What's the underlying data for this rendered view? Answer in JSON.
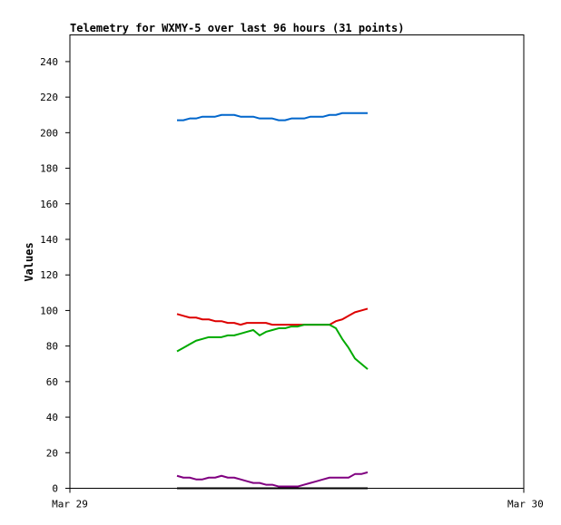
{
  "chart_data": {
    "type": "line",
    "title": "Telemetry for WXMY-5 over last 96 hours (31 points)",
    "xlabel": "",
    "ylabel": "Values",
    "x_tick_labels": [
      "Mar 29",
      "Mar 30"
    ],
    "x_range": [
      0,
      1
    ],
    "ylim": [
      0,
      255
    ],
    "y_ticks": [
      0,
      20,
      40,
      60,
      80,
      100,
      120,
      140,
      160,
      180,
      200,
      220,
      240
    ],
    "grid": false,
    "x": [
      0.236,
      0.25,
      0.264,
      0.278,
      0.292,
      0.306,
      0.32,
      0.334,
      0.348,
      0.362,
      0.376,
      0.39,
      0.404,
      0.418,
      0.432,
      0.446,
      0.46,
      0.474,
      0.488,
      0.502,
      0.516,
      0.53,
      0.544,
      0.558,
      0.572,
      0.586,
      0.6,
      0.614,
      0.628,
      0.642,
      0.656
    ],
    "series": [
      {
        "color": "#0066cc",
        "values": [
          207,
          207,
          208,
          208,
          209,
          209,
          209,
          210,
          210,
          210,
          209,
          209,
          209,
          208,
          208,
          208,
          207,
          207,
          208,
          208,
          208,
          209,
          209,
          209,
          210,
          210,
          211,
          211,
          211,
          211,
          211
        ]
      },
      {
        "color": "#dd0000",
        "values": [
          98,
          97,
          96,
          96,
          95,
          95,
          94,
          94,
          93,
          93,
          92,
          93,
          93,
          93,
          93,
          92,
          92,
          92,
          92,
          92,
          92,
          92,
          92,
          92,
          92,
          94,
          95,
          97,
          99,
          100,
          101
        ]
      },
      {
        "color": "#00aa00",
        "values": [
          77,
          79,
          81,
          83,
          84,
          85,
          85,
          85,
          86,
          86,
          87,
          88,
          89,
          86,
          88,
          89,
          90,
          90,
          91,
          91,
          92,
          92,
          92,
          92,
          92,
          90,
          84,
          79,
          73,
          70,
          67
        ]
      },
      {
        "color": "#800080",
        "values": [
          7,
          6,
          6,
          5,
          5,
          6,
          6,
          7,
          6,
          6,
          5,
          4,
          3,
          3,
          2,
          2,
          1,
          1,
          1,
          1,
          2,
          3,
          4,
          5,
          6,
          6,
          6,
          6,
          8,
          8,
          9
        ]
      },
      {
        "color": "#000000",
        "values": [
          0,
          0,
          0,
          0,
          0,
          0,
          0,
          0,
          0,
          0,
          0,
          0,
          0,
          0,
          0,
          0,
          0,
          0,
          0,
          0,
          0,
          0,
          0,
          0,
          0,
          0,
          0,
          0,
          0,
          0,
          0
        ]
      }
    ]
  }
}
